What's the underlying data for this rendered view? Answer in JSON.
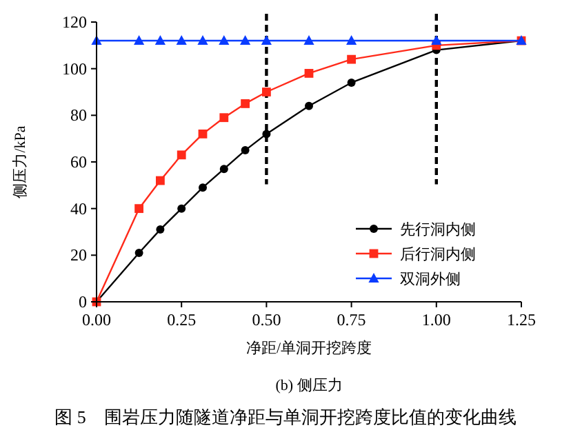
{
  "chart_data": {
    "type": "line",
    "xlabel": "净距/单洞开挖跨度",
    "ylabel": "侧压力/kPa",
    "subtitle": "(b) 侧压力",
    "annotations": [
      "图 5　围岩压力随隧道净距与单洞开挖跨度比值的变化曲线"
    ],
    "x": [
      0,
      0.125,
      0.1875,
      0.25,
      0.3125,
      0.375,
      0.4375,
      0.5,
      0.625,
      0.75,
      1.0,
      1.25
    ],
    "series": [
      {
        "name": "先行洞内侧",
        "color": "#000000",
        "marker": "circle",
        "values": [
          0,
          21,
          31,
          40,
          49,
          57,
          65,
          72,
          84,
          94,
          108,
          112
        ]
      },
      {
        "name": "后行洞内侧",
        "color": "#ff2a1a",
        "marker": "square",
        "values": [
          0,
          40,
          52,
          63,
          72,
          79,
          85,
          90,
          98,
          104,
          110,
          112
        ]
      },
      {
        "name": "双洞外侧",
        "color": "#0a3cff",
        "marker": "triangle",
        "values": [
          112,
          112,
          112,
          112,
          112,
          112,
          112,
          112,
          112,
          112,
          112,
          112
        ]
      }
    ],
    "xlim": [
      0,
      1.25
    ],
    "xticks": [
      {
        "value": 0,
        "label": "0.00"
      },
      {
        "value": 0.25,
        "label": "0.25"
      },
      {
        "value": 0.5,
        "label": "0.50"
      },
      {
        "value": 0.75,
        "label": "0.75"
      },
      {
        "value": 1,
        "label": "1.00"
      },
      {
        "value": 1.25,
        "label": "1.25"
      }
    ],
    "ylim": [
      0,
      120
    ],
    "yticks": [
      0,
      20,
      40,
      60,
      80,
      100,
      120
    ],
    "ref_lines": [
      {
        "axis": "x",
        "value": 0.5,
        "color": "#000000",
        "line_style": "dashed"
      },
      {
        "axis": "x",
        "value": 1,
        "color": "#000000",
        "line_style": "dashed"
      }
    ],
    "legend": "bottom right",
    "grid": false
  }
}
